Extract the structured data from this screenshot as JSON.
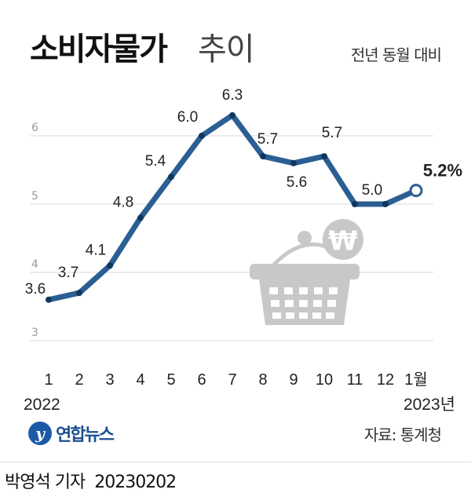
{
  "header": {
    "title_bold": "소비자물가",
    "title_light": "추이",
    "subtitle": "전년 동월 대비"
  },
  "chart_data": {
    "type": "line",
    "x": [
      "1",
      "2",
      "3",
      "4",
      "5",
      "6",
      "7",
      "8",
      "9",
      "10",
      "11",
      "12",
      "1월"
    ],
    "values": [
      3.6,
      3.7,
      4.1,
      4.8,
      5.4,
      6.0,
      6.3,
      5.7,
      5.6,
      5.7,
      5.0,
      5.0,
      5.2
    ],
    "labels": [
      "3.6",
      "3.7",
      "4.1",
      "4.8",
      "5.4",
      "6.0",
      "6.3",
      "5.7",
      "5.6",
      "5.7",
      "5.0",
      "",
      "5.2%"
    ],
    "year_labels": [
      {
        "index": 0,
        "text": "2022"
      },
      {
        "index": 12,
        "text": "2023년"
      }
    ],
    "y_ticks": [
      3,
      4,
      5,
      6
    ],
    "ylim": [
      3,
      6.5
    ],
    "grid": true,
    "line_color": "#2b5f93",
    "grid_color": "#d8d8d8",
    "last_marker_color": "#2b5f93"
  },
  "illustration": {
    "icon": "shopping-basket-icon",
    "symbol": "₩",
    "color": "#c8c8c8"
  },
  "footer": {
    "logo_mark": "y",
    "logo_text": "연합뉴스",
    "source": "자료: 통계청",
    "reporter": "박영석 기자",
    "date": "20230202"
  }
}
